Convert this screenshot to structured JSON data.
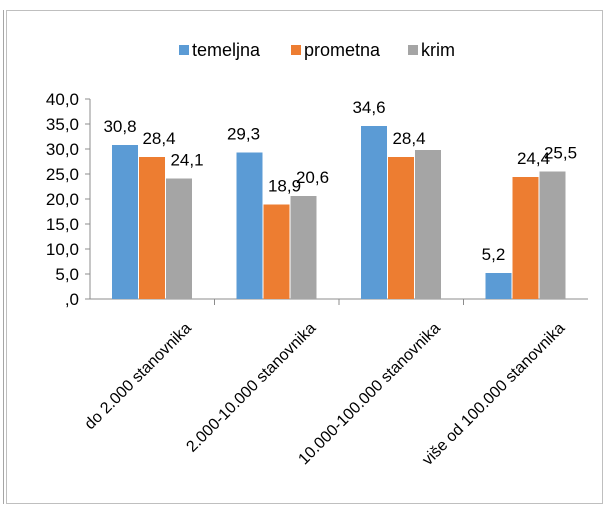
{
  "chart_data": {
    "type": "bar",
    "categories": [
      "do 2.000 stanovnika",
      "2.000-10.000 stanovnika",
      "10.000-100.000 stanovnika",
      "više od 100.000 stanovnika"
    ],
    "series": [
      {
        "name": "temeljna",
        "color": "#5b9bd5",
        "values": [
          30.8,
          29.3,
          34.6,
          5.2
        ],
        "labels": [
          "30,8",
          "29,3",
          "34,6",
          "5,2"
        ]
      },
      {
        "name": "prometna",
        "color": "#ed7d31",
        "values": [
          28.4,
          18.9,
          28.4,
          24.4
        ],
        "labels": [
          "28,4",
          "18,9",
          "28,4",
          "24,4"
        ]
      },
      {
        "name": "krim",
        "color": "#a5a5a5",
        "values": [
          24.1,
          20.6,
          29.8,
          25.5
        ],
        "labels": [
          "24,1",
          "20,6",
          "",
          "25,5"
        ]
      }
    ],
    "y_ticks": [
      ",0",
      "5,0",
      "10,0",
      "15,0",
      "20,0",
      "25,0",
      "30,0",
      "35,0",
      "40,0"
    ],
    "ylim": [
      0,
      40
    ],
    "grid": false,
    "legend_position": "top"
  }
}
